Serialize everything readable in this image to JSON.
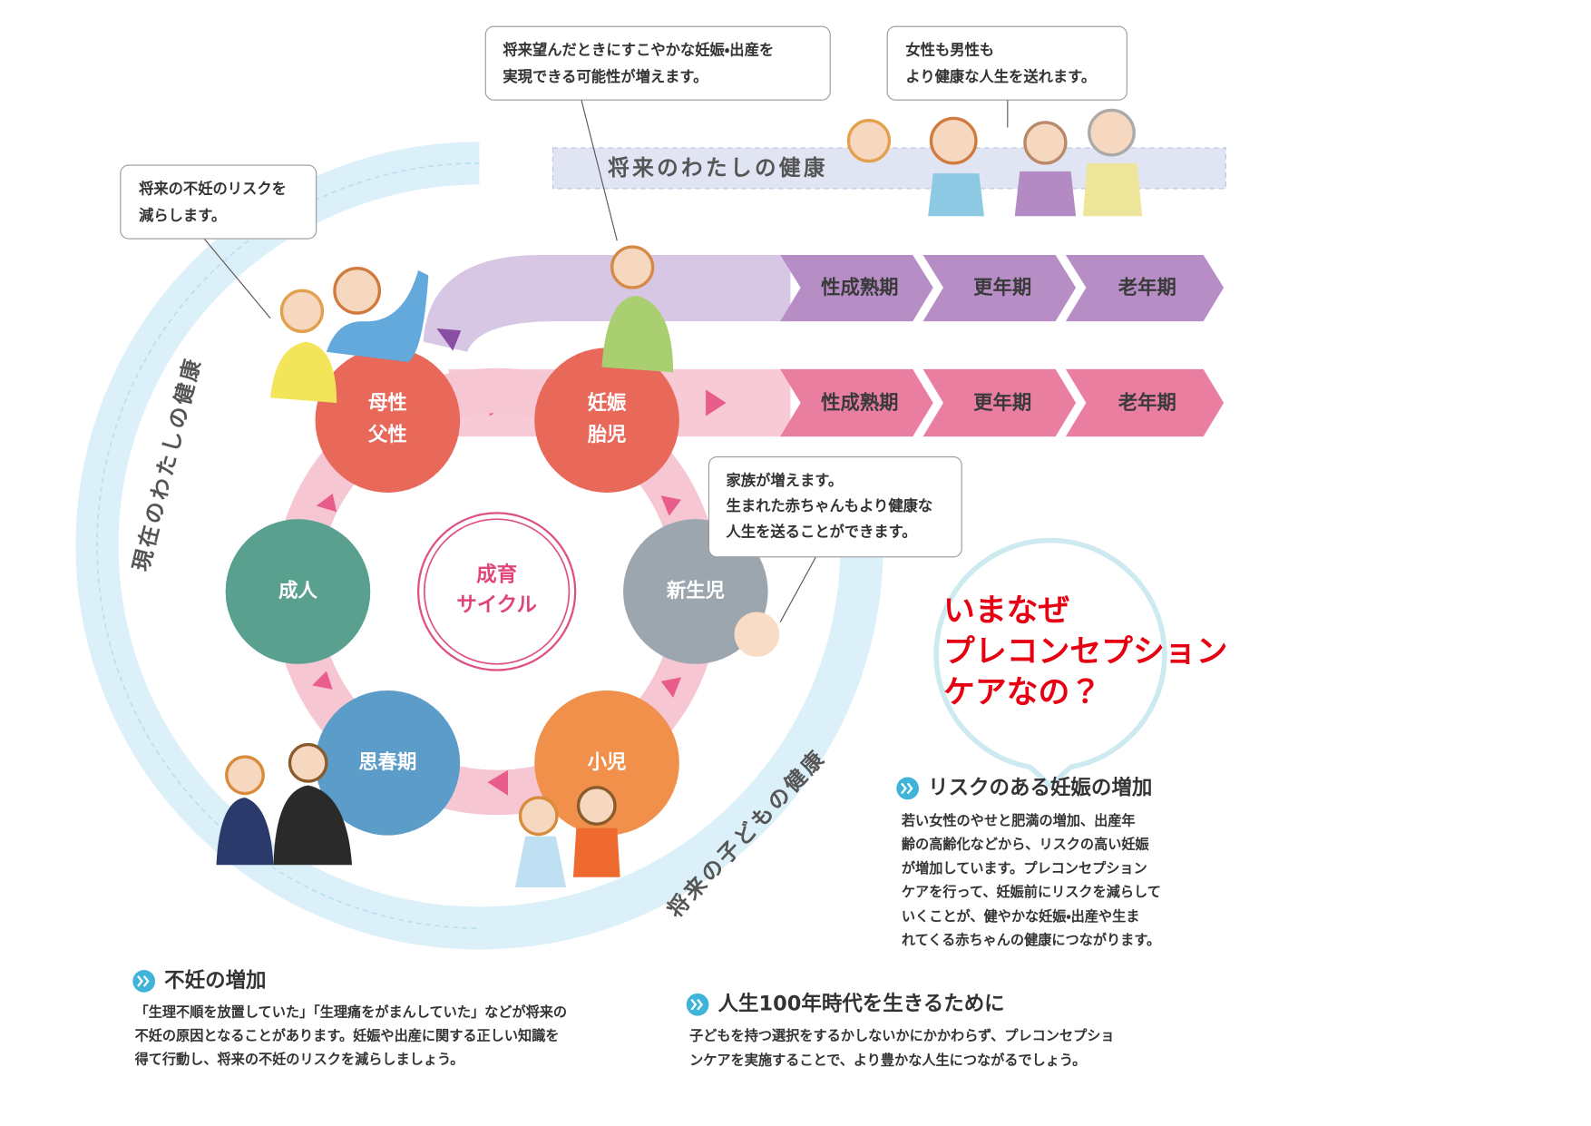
{
  "callouts": [
    {
      "lines": [
        "将来望んだときにすこやかな妊娠・出産を",
        "実現できる可能性が増えます。"
      ]
    },
    {
      "lines": [
        "女性も男性も",
        "より健康な人生を送れます。"
      ]
    },
    {
      "lines": [
        "将来の不妊のリスクを",
        "減らします。"
      ]
    },
    {
      "lines": [
        "家族が増えます。",
        "生まれた赤ちゃんもより健康な",
        "人生を送ることができます。"
      ]
    }
  ],
  "bands": {
    "future_self": "将来のわたしの健康",
    "current_self": "現在のわたしの健康",
    "future_child": "将来の子どもの健康"
  },
  "stage_rows": [
    [
      "性成熟期",
      "更年期",
      "老年期"
    ],
    [
      "性成熟期",
      "更年期",
      "老年期"
    ]
  ],
  "cycle": {
    "center": [
      "成育",
      "サイクル"
    ],
    "stages": [
      [
        "母性",
        "父性"
      ],
      [
        "妊娠",
        "胎児"
      ],
      [
        "新生児"
      ],
      [
        "小児"
      ],
      [
        "思春期"
      ],
      [
        "成人"
      ]
    ]
  },
  "heading": [
    "いまなぜ",
    "プレコンセプション",
    "ケアなの？"
  ],
  "sections": [
    {
      "title": "リスクのある妊娠の増加",
      "body": [
        "若い女性のやせと肥満の増加、出産年",
        "齢の高齢化などから、リスクの高い妊娠",
        "が増加しています。プレコンセプション",
        "ケアを行って、妊娠前にリスクを減らして",
        "いくことが、健やかな妊娠・出産や生ま",
        "れてくる赤ちゃんの健康につながります。"
      ]
    },
    {
      "title": "不妊の増加",
      "body": [
        "「生理不順を放置していた」「生理痛をがまんしていた」などが将来の",
        "不妊の原因となることがあります。妊娠や出産に関する正しい知識を",
        "得て行動し、将来の不妊のリスクを減らしましょう。"
      ]
    },
    {
      "title": "人生100年時代を生きるために",
      "body": [
        "子どもを持つ選択をするかしないかにかかわらず、プレコンセプショ",
        "ンケアを実施することで、より豊かな人生につながるでしょう。"
      ]
    }
  ]
}
